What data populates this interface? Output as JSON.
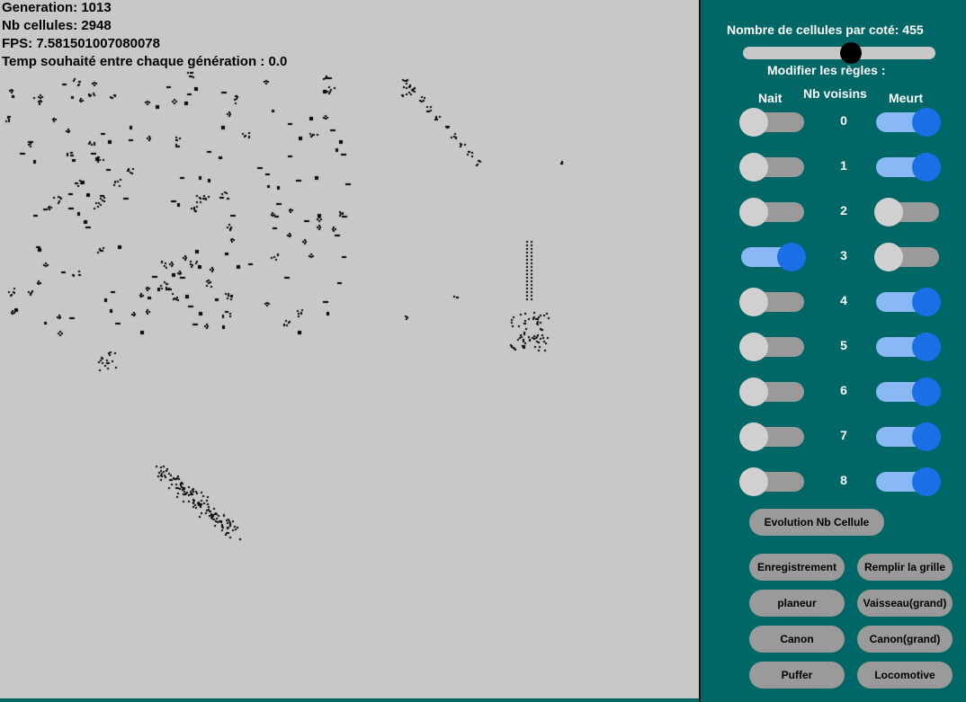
{
  "stats": {
    "generation": "Generation: 1013",
    "cells": "Nb cellules: 2948",
    "fps": "FPS: 7.581501007080078",
    "delay": "Temp souhaité entre chaque génération : 0.0"
  },
  "panel": {
    "size_label": "Nombre de cellules par coté: 455",
    "size_slider_value": 455,
    "rules_title": "Modifier les règles :",
    "col_birth": "Nait",
    "col_neighbors": "Nb voisins",
    "col_death": "Meurt",
    "rules": [
      {
        "n": "0",
        "birth": false,
        "death": true
      },
      {
        "n": "1",
        "birth": false,
        "death": true
      },
      {
        "n": "2",
        "birth": false,
        "death": false
      },
      {
        "n": "3",
        "birth": true,
        "death": false
      },
      {
        "n": "4",
        "birth": false,
        "death": true
      },
      {
        "n": "5",
        "birth": false,
        "death": true
      },
      {
        "n": "6",
        "birth": false,
        "death": true
      },
      {
        "n": "7",
        "birth": false,
        "death": true
      },
      {
        "n": "8",
        "birth": false,
        "death": true
      }
    ],
    "evolution_button": "Evolution Nb Cellule",
    "buttons": {
      "record": "Enregistrement",
      "fill": "Remplir la grille",
      "glider": "planeur",
      "ship_big": "Vaisseau(grand)",
      "cannon": "Canon",
      "cannon_big": "Canon(grand)",
      "puffer": "Puffer",
      "locomotive": "Locomotive"
    }
  },
  "colors": {
    "panel_bg": "#006666",
    "grid_bg": "#c8c8c8",
    "toggle_on": "#1a6fe6",
    "toggle_off": "#d0d0d0"
  }
}
